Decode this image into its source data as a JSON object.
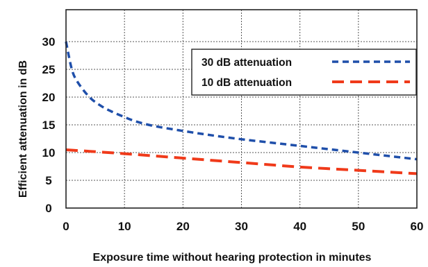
{
  "chart_data": {
    "type": "line",
    "title": "",
    "xlabel": "Exposure time without hearing protection in minutes",
    "ylabel": "Efficient attenuation in dB",
    "xlim": [
      0,
      60
    ],
    "ylim": [
      0,
      30
    ],
    "xticks": [
      "0",
      "10",
      "20",
      "30",
      "40",
      "50",
      "60"
    ],
    "yticks": [
      "0",
      "5",
      "10",
      "15",
      "20",
      "25",
      "30"
    ],
    "grid": true,
    "legend_position": "top-right",
    "series": [
      {
        "name": "30 dB attenuation",
        "color": "#1f4faa",
        "dash": "short",
        "x": [
          0,
          1,
          2,
          4,
          6,
          8,
          10,
          12,
          15,
          20,
          25,
          30,
          35,
          40,
          45,
          50,
          55,
          60
        ],
        "y": [
          30,
          25,
          22.7,
          20,
          18.4,
          17.3,
          16.4,
          15.6,
          14.8,
          13.9,
          13.1,
          12.4,
          11.8,
          11.2,
          10.6,
          10.0,
          9.4,
          8.8
        ]
      },
      {
        "name": "10 dB attenuation",
        "color": "#f03a1a",
        "dash": "long",
        "x": [
          0,
          10,
          20,
          30,
          40,
          50,
          60
        ],
        "y": [
          10.5,
          9.8,
          9.0,
          8.2,
          7.4,
          6.8,
          6.2
        ]
      }
    ]
  }
}
